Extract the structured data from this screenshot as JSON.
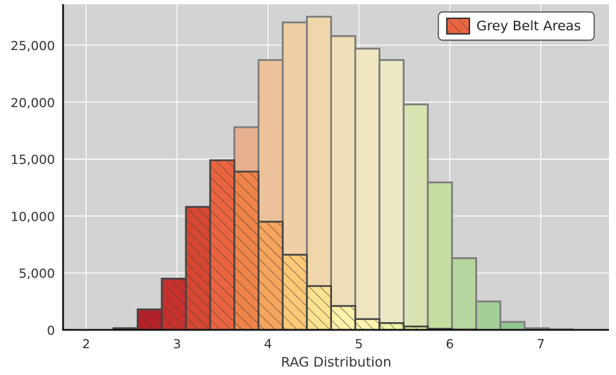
{
  "chart_data": {
    "type": "bar",
    "title": "",
    "xlabel": "RAG Distribution",
    "ylabel": "",
    "xlim": [
      1.75,
      7.75
    ],
    "ylim": [
      0,
      28600
    ],
    "x_ticks": [
      2,
      3,
      4,
      5,
      6,
      7
    ],
    "x_tick_labels": [
      "2",
      "3",
      "4",
      "5",
      "6",
      "7"
    ],
    "y_ticks": [
      0,
      5000,
      10000,
      15000,
      20000,
      25000
    ],
    "y_tick_labels": [
      "0",
      "5,000",
      "10,000",
      "15,000",
      "20,000",
      "25,000"
    ],
    "grid": true,
    "legend_position": "top-right",
    "bin_width": 0.266,
    "series": [
      {
        "role": "background",
        "bin_starts": [
          2.3,
          2.566,
          2.832,
          3.098,
          3.364,
          3.63,
          3.896,
          4.162,
          4.428,
          4.694,
          4.96,
          5.226,
          5.492,
          5.758,
          6.024,
          6.29,
          6.556,
          6.822,
          7.088
        ],
        "values": [
          100,
          1800,
          4500,
          10800,
          14900,
          17800,
          23700,
          27000,
          27500,
          25800,
          24700,
          23700,
          19800,
          12950,
          6300,
          2500,
          700,
          150,
          50
        ]
      },
      {
        "name": "Grey Belt Areas",
        "role": "highlight",
        "bin_starts": [
          2.3,
          2.566,
          2.832,
          3.098,
          3.364,
          3.63,
          3.896,
          4.162,
          4.428,
          4.694,
          4.96,
          5.226,
          5.492,
          5.758,
          6.024
        ],
        "values": [
          150,
          1800,
          4500,
          10800,
          14900,
          13900,
          9500,
          6600,
          3850,
          2100,
          950,
          600,
          300,
          100,
          30
        ]
      }
    ],
    "colors": {
      "background_bars": [
        "#d9a29c",
        "#e4a59c",
        "#e5ad95",
        "#e8b79a",
        "#e8b898",
        "#e6af8f",
        "#edc29a",
        "#efcfa4",
        "#efd7ab",
        "#efdfb6",
        "#efe6c0",
        "#ebe8c6",
        "#d7e4b2",
        "#c5dda0",
        "#b5d69e",
        "#a3ce96",
        "#93c58f",
        "#c9d6c6",
        "#d0d0d0"
      ],
      "highlight_bars": [
        "#8b1a1a",
        "#b81f28",
        "#c9302b",
        "#d8462f",
        "#ec643f",
        "#f08347",
        "#f7a55c",
        "#fdc977",
        "#fde28f",
        "#fef2a9",
        "#fdf4ad",
        "#f1f5a3",
        "#d9ec93",
        "#9fd07d",
        "#66bd63"
      ],
      "legend_swatch": "#ec643f",
      "plot_background": "#d3d3d3",
      "gridline": "#ffffff",
      "bar_edge": "#444444"
    }
  }
}
